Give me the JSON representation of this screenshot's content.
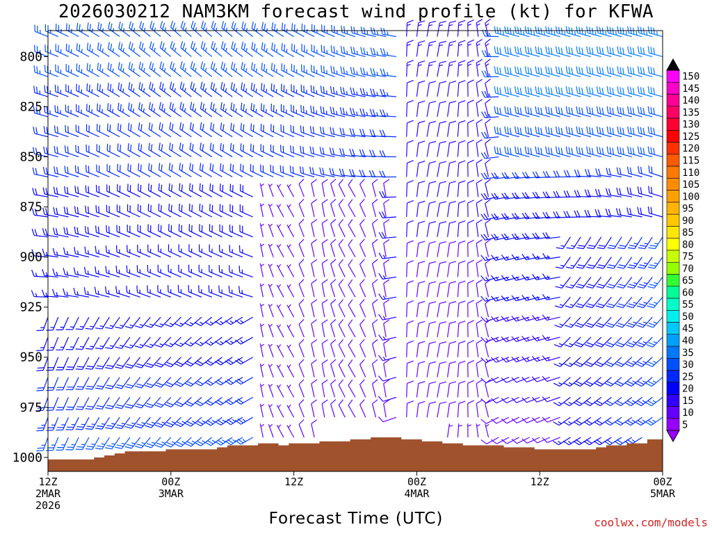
{
  "chart_data": {
    "type": "wind-barb time-height",
    "title": "2026030212 NAM3KM forecast wind profile (kt) for KFWA",
    "xlabel": "Forecast Time (UTC)",
    "ylabel": "",
    "y_ticks": [
      800,
      825,
      850,
      875,
      900,
      925,
      950,
      975,
      1000
    ],
    "y_range": [
      1007,
      787
    ],
    "x_range_hours": [
      0,
      60
    ],
    "x_ticks": [
      {
        "hour": 0,
        "lines": [
          "12Z",
          "2MAR",
          "2026"
        ]
      },
      {
        "hour": 12,
        "lines": [
          "00Z",
          "3MAR"
        ]
      },
      {
        "hour": 24,
        "lines": [
          "12Z"
        ]
      },
      {
        "hour": 36,
        "lines": [
          "00Z",
          "4MAR"
        ]
      },
      {
        "hour": 48,
        "lines": [
          "12Z"
        ]
      },
      {
        "hour": 60,
        "lines": [
          "00Z",
          "5MAR"
        ]
      }
    ],
    "colorbar_levels": [
      150,
      145,
      140,
      135,
      130,
      125,
      120,
      115,
      110,
      105,
      100,
      95,
      90,
      85,
      80,
      75,
      70,
      65,
      60,
      55,
      50,
      45,
      40,
      35,
      30,
      25,
      20,
      15,
      10,
      5
    ],
    "colorbar_colors": [
      "#ff00ff",
      "#ff00c8",
      "#ff0096",
      "#ff0064",
      "#ff0032",
      "#ff0000",
      "#ff3200",
      "#ff5a00",
      "#ff7800",
      "#ff8c00",
      "#ffa000",
      "#ffb400",
      "#ffc800",
      "#ffe600",
      "#ffff00",
      "#c8ff00",
      "#96ff00",
      "#32ff32",
      "#00ff96",
      "#00ffc8",
      "#00f0f0",
      "#00c8ff",
      "#00a0ff",
      "#0078ff",
      "#0050ff",
      "#0028ff",
      "#0000ff",
      "#3200ff",
      "#6400ff",
      "#9600ff"
    ],
    "terrain_color": "#a0522d",
    "surface_pressure_hours": [
      0,
      1,
      2,
      3,
      4,
      5,
      6,
      7,
      8,
      9,
      10,
      11,
      12,
      13,
      14,
      15,
      16,
      17,
      18,
      19,
      20,
      21,
      22,
      23,
      24,
      25,
      26,
      27,
      28,
      29,
      30,
      31,
      32,
      33,
      34,
      35,
      36,
      37,
      38,
      39,
      40,
      41,
      42,
      43,
      44,
      45,
      46,
      47,
      48,
      49,
      50,
      51,
      52,
      53,
      54,
      55,
      56,
      57,
      58,
      59,
      60
    ],
    "surface_pressure_hpa": [
      1001,
      1001,
      1001,
      1001,
      1001,
      1000,
      999,
      998,
      997,
      997,
      997,
      997,
      996,
      996,
      996,
      996,
      996,
      995,
      994,
      994,
      994,
      993,
      993,
      994,
      993,
      993,
      993,
      992,
      992,
      992,
      991,
      991,
      990,
      990,
      990,
      991,
      991,
      992,
      992,
      993,
      993,
      994,
      994,
      994,
      994,
      995,
      995,
      995,
      996,
      996,
      996,
      996,
      996,
      996,
      995,
      994,
      994,
      993,
      993,
      991,
      991
    ],
    "barb_pressure_levels": [
      790,
      800,
      810,
      820,
      830,
      840,
      850,
      860,
      870,
      880,
      890,
      900,
      910,
      920,
      930,
      940,
      950,
      960,
      970,
      980,
      990,
      1000
    ],
    "barb_step_hours": 1,
    "wind_field_note": "speed 5-35 kt; westerly/northwesterly aloft, NW-to-N calm zone mid-period, S-SW low levels early"
  },
  "credit": "coolwx.com/models"
}
